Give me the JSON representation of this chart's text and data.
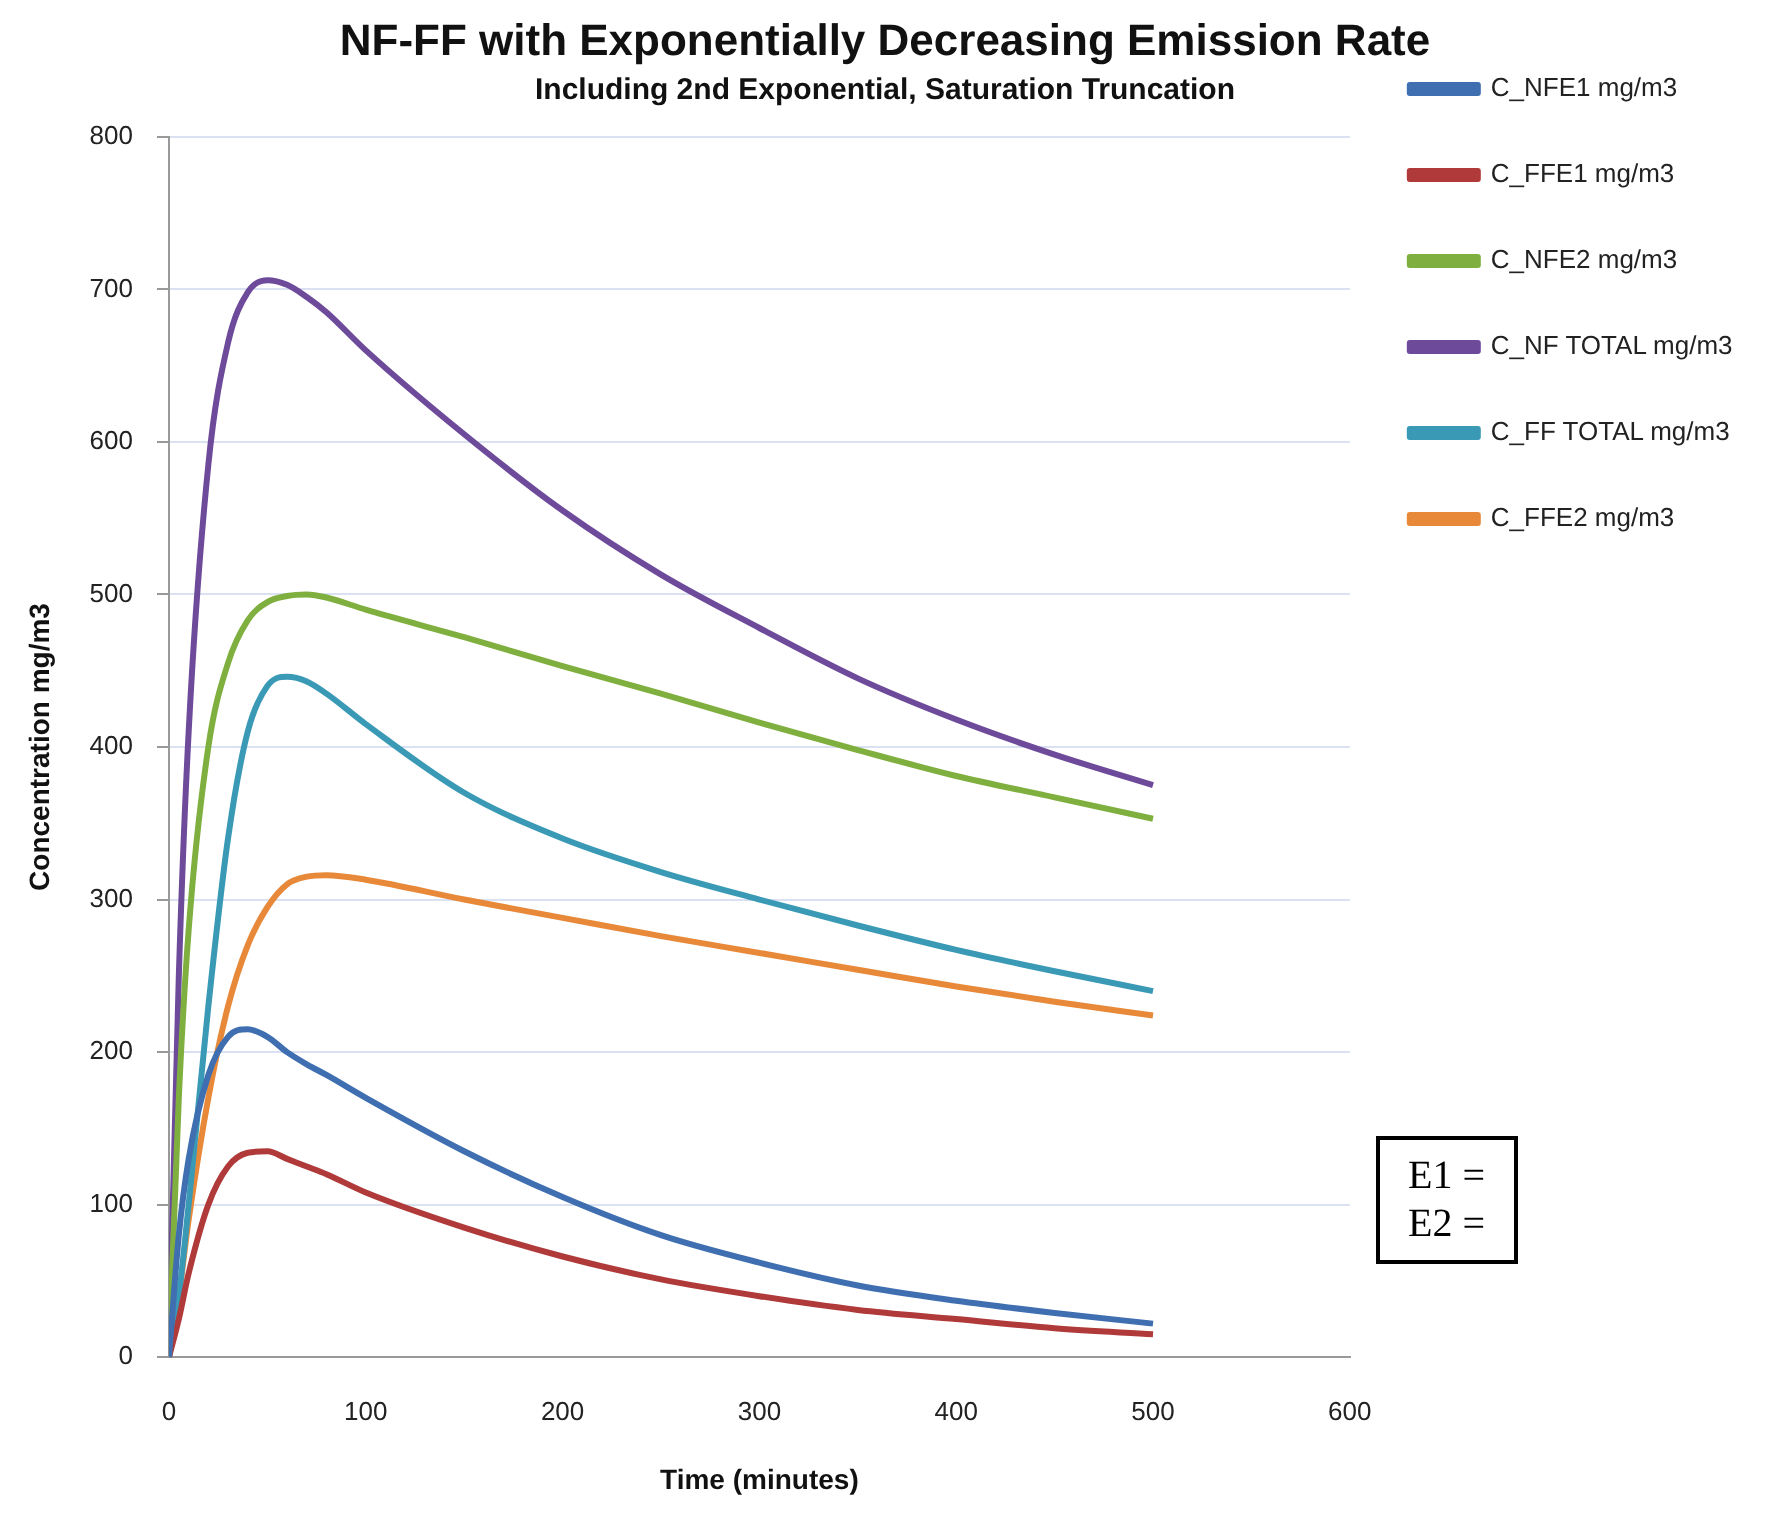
{
  "chart_data": {
    "type": "line",
    "title": "NF-FF with Exponentially Decreasing Emission Rate",
    "subtitle": "Including 2nd Exponential, Saturation Truncation",
    "xlabel": "Time (minutes)",
    "ylabel": "Concentration mg/m3",
    "x": [
      0,
      5,
      10,
      20,
      30,
      40,
      50,
      60,
      70,
      80,
      100,
      150,
      200,
      250,
      300,
      350,
      400,
      450,
      500
    ],
    "series": [
      {
        "name": "C_NFE1 mg/m3",
        "color": "#3f6fb0",
        "values": [
          0,
          80,
          130,
          185,
          210,
          215,
          210,
          200,
          192,
          185,
          170,
          135,
          105,
          80,
          62,
          47,
          37,
          29,
          22
        ]
      },
      {
        "name": "C_FFE1 mg/m3",
        "color": "#b03a3a",
        "values": [
          0,
          25,
          55,
          100,
          125,
          134,
          135,
          130,
          125,
          120,
          108,
          85,
          66,
          51,
          40,
          31,
          25,
          19,
          15
        ]
      },
      {
        "name": "C_NFE2 mg/m3",
        "color": "#7fb03f",
        "values": [
          0,
          170,
          280,
          400,
          455,
          483,
          495,
          499,
          500,
          498,
          490,
          472,
          453,
          435,
          416,
          398,
          381,
          367,
          353
        ]
      },
      {
        "name": "C_NF TOTAL mg/m3",
        "color": "#6e4a9a",
        "values": [
          0,
          250,
          410,
          585,
          665,
          698,
          706,
          703,
          695,
          685,
          660,
          605,
          555,
          513,
          478,
          445,
          418,
          395,
          375
        ]
      },
      {
        "name": "C_FF TOTAL mg/m3",
        "color": "#3a9ab5",
        "values": [
          0,
          40,
          100,
          230,
          340,
          410,
          440,
          446,
          443,
          435,
          415,
          370,
          340,
          318,
          300,
          283,
          267,
          253,
          240
        ]
      },
      {
        "name": "C_FFE2 mg/m3",
        "color": "#e8893a",
        "values": [
          0,
          40,
          90,
          170,
          230,
          270,
          295,
          310,
          315,
          316,
          313,
          300,
          288,
          276,
          265,
          254,
          243,
          233,
          224
        ]
      }
    ],
    "xlim": [
      0,
      600
    ],
    "xticks": [
      0,
      100,
      200,
      300,
      400,
      500,
      600
    ],
    "ylim": [
      0,
      800
    ],
    "yticks": [
      0,
      100,
      200,
      300,
      400,
      500,
      600,
      700,
      800
    ],
    "grid": "y",
    "legend": "right",
    "marker": "none",
    "line_style": "solid",
    "annotations": [
      "E1 =",
      "E2 ="
    ]
  }
}
